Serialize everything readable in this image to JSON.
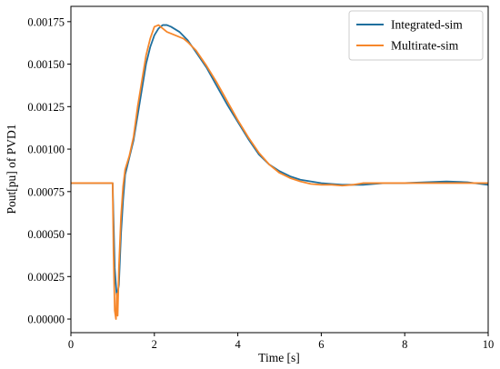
{
  "chart_data": {
    "type": "line",
    "xlabel": "Time [s]",
    "ylabel": "Pout[pu] of PVD1",
    "xlim": [
      0,
      10
    ],
    "ylim": [
      -8e-05,
      0.00184
    ],
    "xticks": [
      0,
      2,
      4,
      6,
      8,
      10
    ],
    "xtick_labels": [
      "0",
      "2",
      "4",
      "6",
      "8",
      "10"
    ],
    "yticks": [
      0,
      0.00025,
      0.0005,
      0.00075,
      0.001,
      0.00125,
      0.0015,
      0.00175
    ],
    "ytick_labels": [
      "0.00000",
      "0.00025",
      "0.00050",
      "0.00075",
      "0.00100",
      "0.00125",
      "0.00150",
      "0.00175"
    ],
    "grid": false,
    "legend_position": "top-right",
    "series": [
      {
        "name": "Integrated-sim",
        "color": "#1f6f9e",
        "x": [
          0,
          1.0,
          1.02,
          1.05,
          1.1,
          1.15,
          1.2,
          1.25,
          1.3,
          1.4,
          1.5,
          1.6,
          1.7,
          1.8,
          1.9,
          2.0,
          2.1,
          2.2,
          2.3,
          2.4,
          2.6,
          2.8,
          3.0,
          3.25,
          3.5,
          3.75,
          4.0,
          4.25,
          4.5,
          4.75,
          5.0,
          5.25,
          5.5,
          5.75,
          6.0,
          6.25,
          6.5,
          6.75,
          7.0,
          7.5,
          8.0,
          8.5,
          9.0,
          9.5,
          10.0
        ],
        "y": [
          0.0008,
          0.0008,
          0.0006,
          0.0003,
          0.00013,
          0.0002,
          0.0005,
          0.0007,
          0.00085,
          0.00095,
          0.00105,
          0.0012,
          0.00135,
          0.0015,
          0.0016,
          0.00167,
          0.00171,
          0.00173,
          0.00173,
          0.00172,
          0.00169,
          0.00164,
          0.00157,
          0.00148,
          0.00137,
          0.00126,
          0.00116,
          0.00106,
          0.00097,
          0.00091,
          0.00087,
          0.00084,
          0.00082,
          0.00081,
          0.0008,
          0.000795,
          0.00079,
          0.00079,
          0.00079,
          0.0008,
          0.0008,
          0.000805,
          0.00081,
          0.000805,
          0.00079
        ]
      },
      {
        "name": "Multirate-sim",
        "color": "#f6872b",
        "x": [
          0,
          1.0,
          1.02,
          1.05,
          1.08,
          1.1,
          1.12,
          1.15,
          1.2,
          1.25,
          1.3,
          1.4,
          1.5,
          1.6,
          1.7,
          1.8,
          1.9,
          2.0,
          2.1,
          2.2,
          2.3,
          2.4,
          2.5,
          2.6,
          2.7,
          2.8,
          3.0,
          3.25,
          3.5,
          3.75,
          4.0,
          4.25,
          4.5,
          4.75,
          5.0,
          5.25,
          5.5,
          5.75,
          6.0,
          6.25,
          6.5,
          6.75,
          7.0,
          7.5,
          8.0,
          8.5,
          9.0,
          9.5,
          10.0
        ],
        "y": [
          0.0008,
          0.0008,
          0.0004,
          5e-05,
          0.0,
          0.00015,
          2e-05,
          0.0003,
          0.0006,
          0.00078,
          0.00088,
          0.00096,
          0.00107,
          0.00125,
          0.0014,
          0.00155,
          0.00165,
          0.00172,
          0.00173,
          0.00171,
          0.00169,
          0.00168,
          0.00167,
          0.00166,
          0.00165,
          0.00163,
          0.00158,
          0.00149,
          0.00139,
          0.00128,
          0.00117,
          0.00107,
          0.00098,
          0.00091,
          0.00086,
          0.00083,
          0.00081,
          0.000795,
          0.00079,
          0.00079,
          0.000785,
          0.00079,
          0.0008,
          0.0008,
          0.0008,
          0.0008,
          0.0008,
          0.0008,
          0.0008
        ]
      }
    ]
  }
}
